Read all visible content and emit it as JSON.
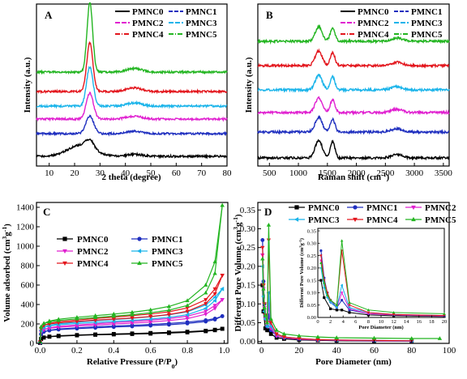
{
  "colors": {
    "PMNC0": "#000000",
    "PMNC1": "#1f2fbf",
    "PMNC2": "#e020d0",
    "PMNC3": "#1ab4ea",
    "PMNC4": "#e3161d",
    "PMNC5": "#23b521"
  },
  "chart_data": [
    {
      "id": "A",
      "type": "line",
      "panel_label": "A",
      "xlabel": "2 theta (degree)",
      "ylabel": "Intensity (a.u.)",
      "xlim": [
        5,
        80
      ],
      "xticks": [
        10,
        20,
        30,
        40,
        50,
        60,
        70,
        80
      ],
      "ylim": [
        0,
        1.0
      ],
      "legend": [
        "PMNC0",
        "PMNC1",
        "PMNC2",
        "PMNC3",
        "PMNC4",
        "PMNC5"
      ],
      "legend_position": "top-right",
      "series": [
        {
          "name": "PMNC0",
          "offset": 0.06,
          "peaks": [
            [
              22.5,
              0.07,
              5
            ],
            [
              26,
              0.05,
              1.6
            ],
            [
              43.5,
              0.012,
              3
            ]
          ]
        },
        {
          "name": "PMNC1",
          "offset": 0.2,
          "peaks": [
            [
              26,
              0.11,
              1.5
            ],
            [
              43.5,
              0.015,
              3
            ]
          ]
        },
        {
          "name": "PMNC2",
          "offset": 0.29,
          "peaks": [
            [
              26,
              0.16,
              1.4
            ],
            [
              43.5,
              0.018,
              3
            ]
          ]
        },
        {
          "name": "PMNC3",
          "offset": 0.37,
          "peaks": [
            [
              26,
              0.24,
              1.3
            ],
            [
              43.5,
              0.02,
              3
            ]
          ]
        },
        {
          "name": "PMNC4",
          "offset": 0.46,
          "peaks": [
            [
              26,
              0.3,
              1.2
            ],
            [
              43.5,
              0.022,
              3
            ]
          ]
        },
        {
          "name": "PMNC5",
          "offset": 0.58,
          "peaks": [
            [
              26,
              0.43,
              1.1
            ],
            [
              43.5,
              0.022,
              3
            ]
          ]
        }
      ]
    },
    {
      "id": "B",
      "type": "line",
      "panel_label": "B",
      "xlabel": "Raman shift (cm⁻¹)",
      "xlabel_main": "Raman shift",
      "xlabel_unit_base": "(cm",
      "xlabel_unit_sup": "-1",
      "xlabel_unit_close": ")",
      "ylabel": "Intensity (a.u.)",
      "xlim": [
        300,
        3600
      ],
      "xticks": [
        500,
        1000,
        1500,
        2000,
        2500,
        3000,
        3500
      ],
      "ylim": [
        0,
        1.0
      ],
      "legend": [
        "PMNC0",
        "PMNC1",
        "PMNC2",
        "PMNC3",
        "PMNC4",
        "PMNC5"
      ],
      "legend_position": "top-right",
      "series": [
        {
          "name": "PMNC0",
          "offset": 0.05,
          "peaks": [
            [
              1350,
              0.11,
              60
            ],
            [
              1590,
              0.1,
              40
            ],
            [
              2700,
              0.02,
              100
            ]
          ]
        },
        {
          "name": "PMNC1",
          "offset": 0.21,
          "peaks": [
            [
              1350,
              0.09,
              60
            ],
            [
              1590,
              0.08,
              40
            ],
            [
              2700,
              0.02,
              100
            ]
          ]
        },
        {
          "name": "PMNC2",
          "offset": 0.33,
          "peaks": [
            [
              1350,
              0.09,
              60
            ],
            [
              1590,
              0.08,
              40
            ],
            [
              2700,
              0.02,
              100
            ]
          ]
        },
        {
          "name": "PMNC3",
          "offset": 0.47,
          "peaks": [
            [
              1350,
              0.09,
              60
            ],
            [
              1590,
              0.08,
              40
            ],
            [
              2700,
              0.02,
              100
            ]
          ]
        },
        {
          "name": "PMNC4",
          "offset": 0.62,
          "peaks": [
            [
              1350,
              0.09,
              60
            ],
            [
              1590,
              0.08,
              40
            ],
            [
              2700,
              0.02,
              100
            ]
          ]
        },
        {
          "name": "PMNC5",
          "offset": 0.77,
          "peaks": [
            [
              1350,
              0.09,
              60
            ],
            [
              1590,
              0.08,
              40
            ],
            [
              2700,
              0.02,
              100
            ]
          ]
        }
      ]
    },
    {
      "id": "C",
      "type": "line",
      "panel_label": "C",
      "xlabel": "Relative Pressure (P/P₀)",
      "xlabel_main": "Relative Pressure (P/P",
      "xlabel_sub": "0",
      "xlabel_close": ")",
      "ylabel": "Volume adsorbed (cm³g⁻¹)",
      "ylabel_main": "Volume adsorbed (cm",
      "ylabel_sup1": "3",
      "ylabel_mid": "g",
      "ylabel_sup2": "-1",
      "ylabel_close": ")",
      "xlim": [
        -0.02,
        1.02
      ],
      "xticks": [
        0.0,
        0.2,
        0.4,
        0.6,
        0.8,
        1.0
      ],
      "ylim": [
        0,
        1450
      ],
      "yticks": [
        0,
        200,
        400,
        600,
        800,
        1000,
        1200,
        1400
      ],
      "legend": [
        "PMNC0",
        "PMNC1",
        "PMNC2",
        "PMNC3",
        "PMNC4",
        "PMNC5"
      ],
      "legend_position": "top-left",
      "series": [
        {
          "name": "PMNC0",
          "marker": "square",
          "x": [
            0.0,
            0.005,
            0.02,
            0.05,
            0.1,
            0.2,
            0.3,
            0.4,
            0.5,
            0.6,
            0.7,
            0.8,
            0.9,
            0.95,
            0.99
          ],
          "ads": [
            5,
            45,
            60,
            68,
            74,
            82,
            88,
            92,
            96,
            100,
            106,
            113,
            125,
            135,
            150
          ],
          "des": [
            5,
            45,
            60,
            70,
            78,
            86,
            92,
            97,
            102,
            107,
            113,
            120,
            130,
            140,
            150
          ]
        },
        {
          "name": "PMNC1",
          "marker": "circle",
          "x": [
            0.0,
            0.005,
            0.02,
            0.05,
            0.1,
            0.2,
            0.3,
            0.4,
            0.5,
            0.6,
            0.7,
            0.8,
            0.9,
            0.95,
            0.99
          ],
          "ads": [
            8,
            95,
            120,
            132,
            142,
            152,
            160,
            168,
            175,
            183,
            192,
            205,
            225,
            245,
            280
          ],
          "des": [
            8,
            95,
            120,
            135,
            148,
            160,
            170,
            178,
            186,
            195,
            205,
            218,
            238,
            255,
            280
          ]
        },
        {
          "name": "PMNC2",
          "marker": "triangle-down",
          "x": [
            0.0,
            0.005,
            0.02,
            0.05,
            0.1,
            0.2,
            0.3,
            0.4,
            0.5,
            0.6,
            0.7,
            0.8,
            0.9,
            0.95,
            0.99
          ],
          "ads": [
            10,
            115,
            140,
            155,
            165,
            178,
            188,
            198,
            208,
            220,
            235,
            255,
            300,
            360,
            450
          ],
          "des": [
            10,
            115,
            140,
            160,
            175,
            190,
            202,
            213,
            225,
            238,
            255,
            280,
            330,
            390,
            450
          ]
        },
        {
          "name": "PMNC3",
          "marker": "triangle-left",
          "x": [
            0.0,
            0.005,
            0.02,
            0.05,
            0.1,
            0.2,
            0.3,
            0.4,
            0.5,
            0.6,
            0.7,
            0.8,
            0.9,
            0.95,
            0.99
          ],
          "ads": [
            12,
            135,
            165,
            180,
            192,
            205,
            215,
            226,
            237,
            250,
            268,
            295,
            360,
            440,
            560
          ],
          "des": [
            12,
            135,
            165,
            186,
            202,
            218,
            232,
            245,
            258,
            273,
            293,
            325,
            395,
            475,
            560
          ]
        },
        {
          "name": "PMNC4",
          "marker": "triangle-down",
          "x": [
            0.0,
            0.005,
            0.02,
            0.05,
            0.1,
            0.2,
            0.3,
            0.4,
            0.5,
            0.6,
            0.7,
            0.8,
            0.9,
            0.95,
            0.99
          ],
          "ads": [
            14,
            150,
            185,
            200,
            212,
            226,
            238,
            250,
            262,
            277,
            297,
            330,
            410,
            510,
            700
          ],
          "des": [
            14,
            150,
            185,
            206,
            223,
            240,
            255,
            270,
            285,
            302,
            325,
            365,
            450,
            560,
            700
          ]
        },
        {
          "name": "PMNC5",
          "marker": "triangle-up",
          "x": [
            0.0,
            0.005,
            0.02,
            0.05,
            0.1,
            0.2,
            0.3,
            0.4,
            0.5,
            0.6,
            0.7,
            0.8,
            0.9,
            0.95,
            0.99
          ],
          "ads": [
            16,
            170,
            205,
            222,
            236,
            252,
            266,
            280,
            295,
            315,
            342,
            390,
            520,
            720,
            1420
          ],
          "des": [
            16,
            170,
            205,
            230,
            248,
            268,
            285,
            302,
            320,
            345,
            380,
            440,
            600,
            840,
            1420
          ]
        }
      ]
    },
    {
      "id": "D",
      "type": "line",
      "panel_label": "D",
      "xlabel": "Pore Diameter (nm)",
      "ylabel": "Different Pore Volume (cm³g⁻¹)",
      "ylabel_main": "Different Pore Volume (cm",
      "ylabel_sup1": "3",
      "ylabel_mid": "g",
      "ylabel_sup2": "-1",
      "ylabel_close": ")",
      "xlim": [
        -2,
        100
      ],
      "xticks": [
        0,
        20,
        40,
        60,
        80,
        100
      ],
      "ylim": [
        -0.005,
        0.37
      ],
      "yticks": [
        0.0,
        0.05,
        0.1,
        0.15,
        0.2,
        0.25,
        0.3,
        0.35
      ],
      "legend": [
        "PMNC0",
        "PMNC1",
        "PMNC2",
        "PMNC3",
        "PMNC4",
        "PMNC5"
      ],
      "legend_position": "top",
      "series": [
        {
          "name": "PMNC0",
          "marker": "square",
          "x": [
            0.5,
            1,
            2,
            3,
            3.8,
            5,
            8,
            12,
            20,
            30,
            40,
            60,
            80
          ],
          "y": [
            0.15,
            0.08,
            0.035,
            0.03,
            0.03,
            0.02,
            0.01,
            0.007,
            0.004,
            0.003,
            0.002,
            0.001,
            0.001
          ]
        },
        {
          "name": "PMNC1",
          "marker": "circle",
          "x": [
            0.5,
            1,
            1.5,
            2,
            3,
            3.8,
            5,
            8,
            12,
            20,
            30,
            40,
            60,
            80
          ],
          "y": [
            0.27,
            0.16,
            0.1,
            0.07,
            0.04,
            0.07,
            0.03,
            0.015,
            0.01,
            0.006,
            0.004,
            0.003,
            0.002,
            0.001
          ]
        },
        {
          "name": "PMNC2",
          "marker": "triangle-down",
          "x": [
            0.5,
            1,
            1.5,
            2,
            3,
            3.8,
            5,
            8,
            12,
            20,
            30,
            40,
            60,
            80
          ],
          "y": [
            0.23,
            0.14,
            0.09,
            0.06,
            0.04,
            0.1,
            0.035,
            0.015,
            0.01,
            0.006,
            0.004,
            0.003,
            0.002,
            0.001
          ]
        },
        {
          "name": "PMNC3",
          "marker": "triangle-left",
          "x": [
            0.5,
            1,
            1.5,
            2,
            3,
            3.8,
            5,
            8,
            12,
            20,
            30,
            40,
            60,
            80
          ],
          "y": [
            0.2,
            0.12,
            0.08,
            0.06,
            0.04,
            0.13,
            0.04,
            0.02,
            0.012,
            0.008,
            0.005,
            0.004,
            0.003,
            0.002
          ]
        },
        {
          "name": "PMNC4",
          "marker": "triangle-down",
          "x": [
            0.5,
            1,
            1.5,
            2,
            3,
            3.8,
            5,
            8,
            12,
            20,
            30,
            40,
            60,
            80
          ],
          "y": [
            0.25,
            0.15,
            0.1,
            0.07,
            0.05,
            0.27,
            0.05,
            0.02,
            0.012,
            0.008,
            0.005,
            0.004,
            0.003,
            0.002
          ]
        },
        {
          "name": "PMNC5",
          "marker": "triangle-up",
          "x": [
            0.5,
            1,
            1.5,
            2,
            3,
            3.8,
            5,
            8,
            12,
            20,
            30,
            40,
            60,
            80,
            95
          ],
          "y": [
            0.22,
            0.14,
            0.09,
            0.07,
            0.05,
            0.31,
            0.06,
            0.03,
            0.02,
            0.015,
            0.012,
            0.01,
            0.009,
            0.008,
            0.008
          ]
        }
      ],
      "inset": {
        "xlabel": "Pore Diameter (nm)",
        "ylabel": "Different Pore Volume (cm³g⁻¹)",
        "ylabel_main": "Different Pore Volume (cm",
        "ylabel_sup1": "3",
        "ylabel_mid": "g",
        "ylabel_sup2": "-1",
        "ylabel_close": ")",
        "xlim": [
          0,
          20
        ],
        "xticks": [
          0,
          2,
          4,
          6,
          8,
          10,
          12,
          14,
          16,
          18,
          20
        ],
        "ylim": [
          0,
          0.36
        ],
        "yticks": [
          0.0,
          0.05,
          0.1,
          0.15,
          0.2,
          0.25,
          0.3,
          0.35
        ]
      }
    }
  ]
}
